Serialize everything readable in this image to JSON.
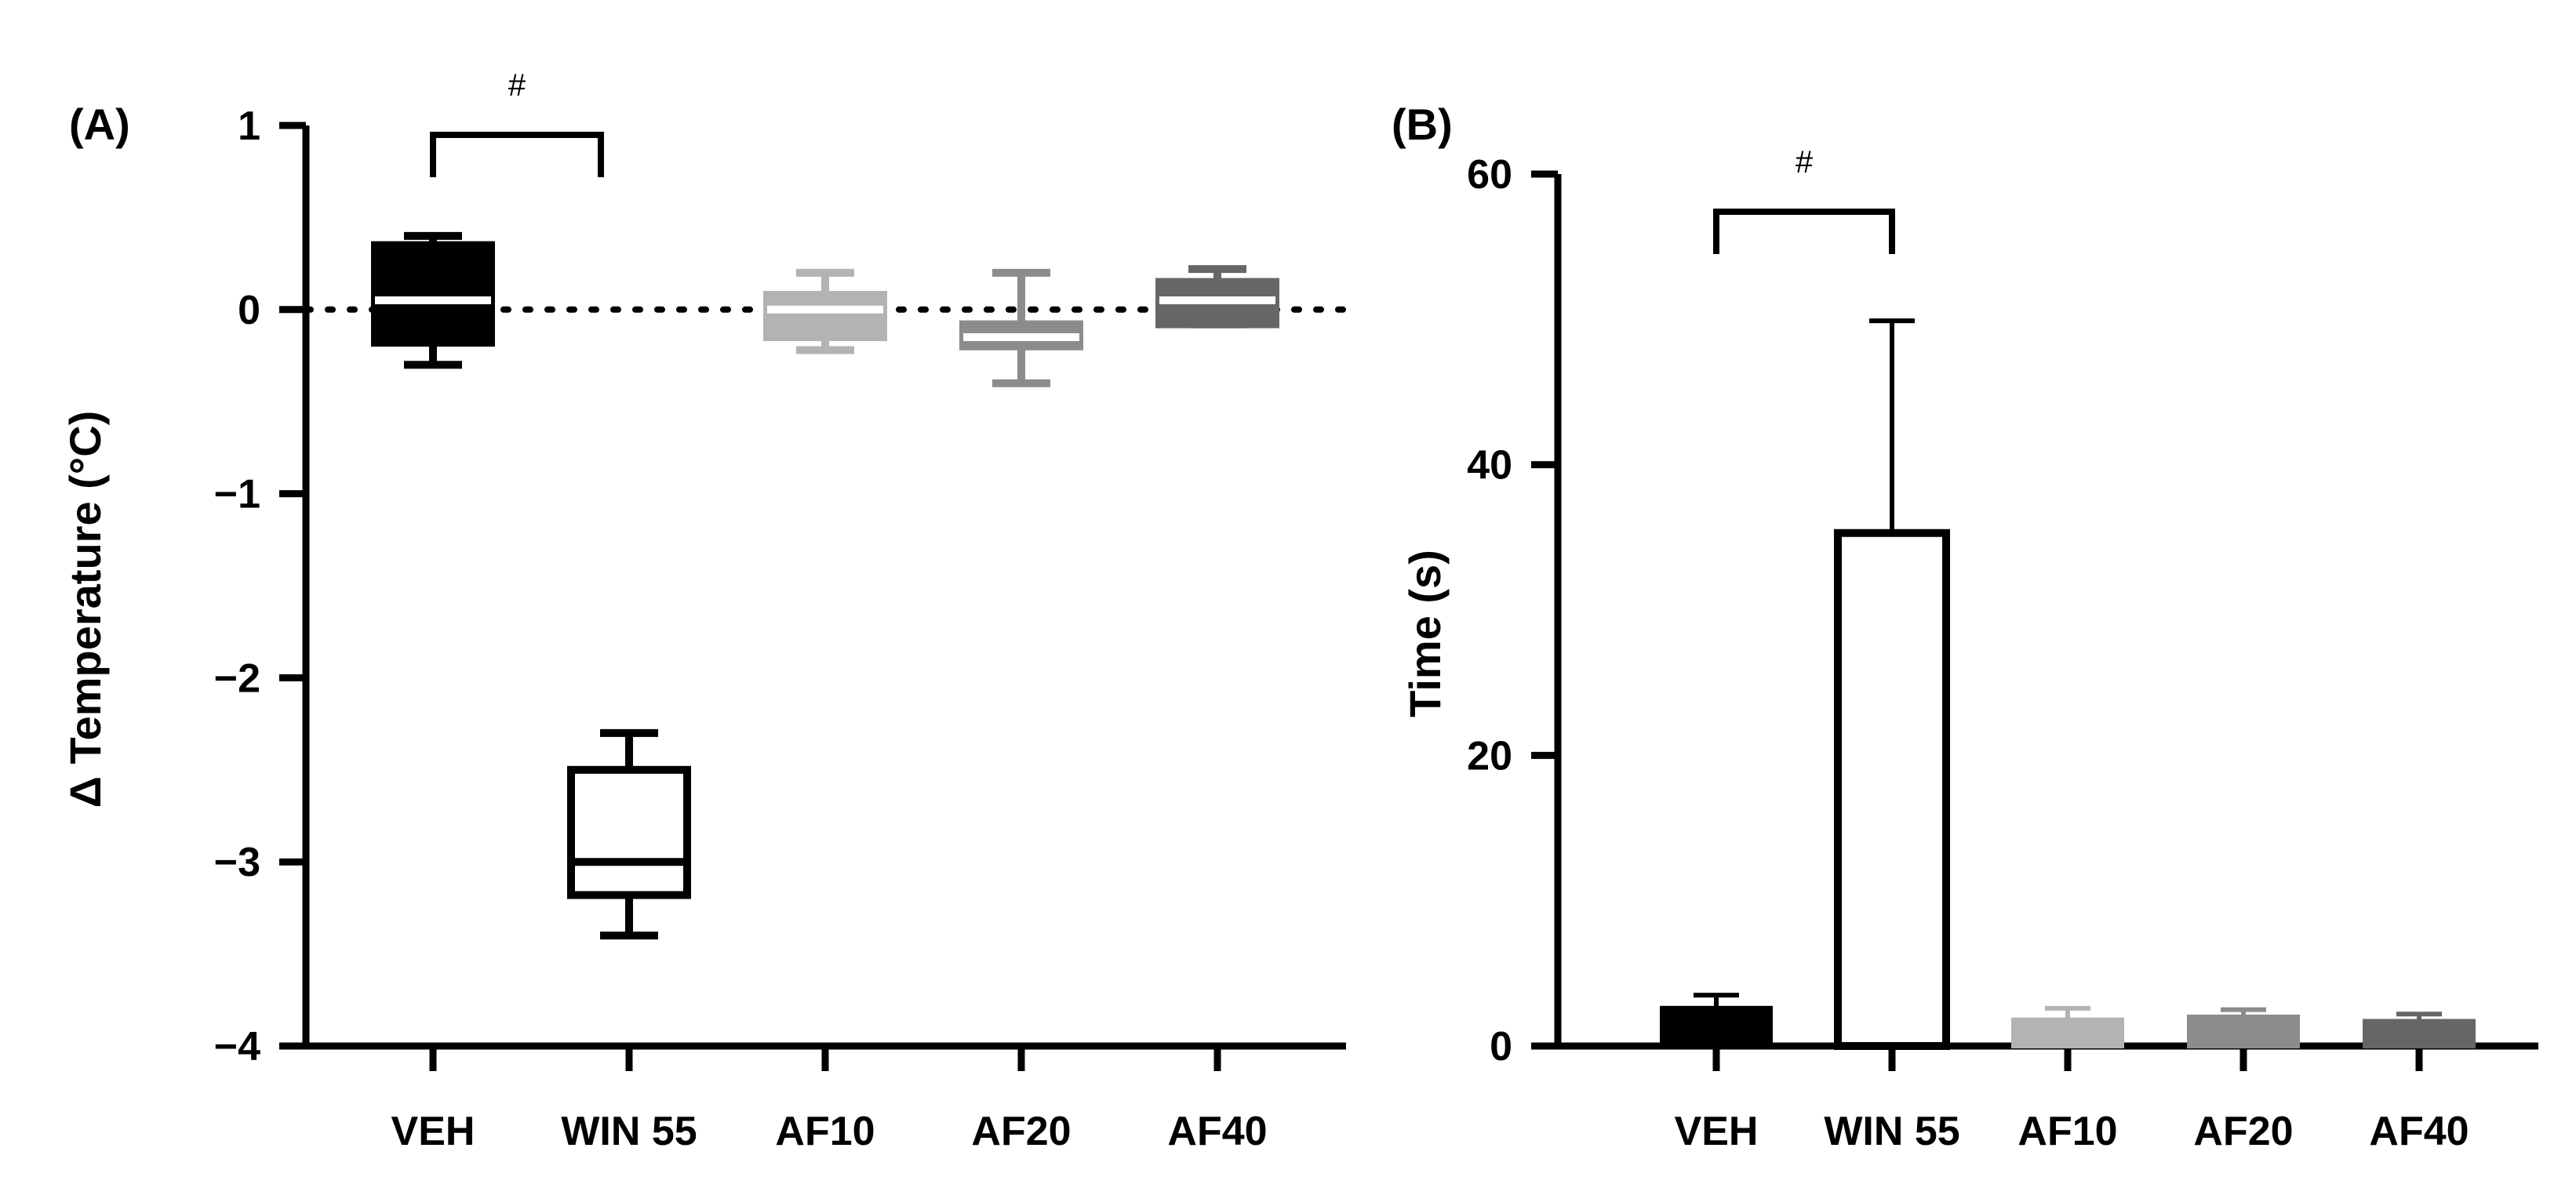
{
  "chart_data": [
    {
      "panel_label": "(A)",
      "type": "box",
      "categories": [
        "VEH",
        "WIN 55",
        "AF10",
        "AF20",
        "AF40"
      ],
      "ylabel": "Δ Temperature (°C)",
      "xlabel": "",
      "ylim": [
        -4,
        1
      ],
      "yticks": [
        1,
        0,
        -1,
        -2,
        -3,
        -4
      ],
      "tick_labels": [
        "1",
        "0",
        "−1",
        "−2",
        "−3",
        "−4"
      ],
      "reference_line": {
        "y": 0,
        "style": "dotted"
      },
      "boxes": [
        {
          "category": "VEH",
          "min": -0.3,
          "q1": -0.18,
          "median": 0.05,
          "q3": 0.35,
          "max": 0.4,
          "color": "#000000"
        },
        {
          "category": "WIN 55",
          "min": -3.4,
          "q1": -3.18,
          "median": -3.0,
          "q3": -2.5,
          "max": -2.3,
          "color": "#ffffff"
        },
        {
          "category": "AF10",
          "min": -0.22,
          "q1": -0.15,
          "median": 0.0,
          "q3": 0.08,
          "max": 0.2,
          "color": "#b3b3b3"
        },
        {
          "category": "AF20",
          "min": -0.4,
          "q1": -0.2,
          "median": -0.15,
          "q3": -0.08,
          "max": 0.2,
          "color": "#8c8c8c"
        },
        {
          "category": "AF40",
          "min": -0.08,
          "q1": -0.08,
          "median": 0.05,
          "q3": 0.15,
          "max": 0.22,
          "color": "#666666"
        }
      ],
      "annotations": [
        {
          "text": "#",
          "from": "VEH",
          "to": "WIN 55"
        }
      ]
    },
    {
      "panel_label": "(B)",
      "type": "bar",
      "categories": [
        "VEH",
        "WIN 55",
        "AF10",
        "AF20",
        "AF40"
      ],
      "values": [
        2.6,
        35.3,
        1.8,
        2.0,
        1.7
      ],
      "error": [
        0.9,
        14.6,
        0.8,
        0.5,
        0.5
      ],
      "colors": [
        "#000000",
        "#ffffff",
        "#b3b3b3",
        "#8c8c8c",
        "#666666"
      ],
      "ylabel": "Time (s)",
      "xlabel": "",
      "ylim": [
        0,
        60
      ],
      "yticks": [
        0,
        20,
        40,
        60
      ],
      "tick_labels": [
        "0",
        "20",
        "40",
        "60"
      ],
      "annotations": [
        {
          "text": "#",
          "from": "VEH",
          "to": "WIN 55"
        }
      ]
    }
  ]
}
